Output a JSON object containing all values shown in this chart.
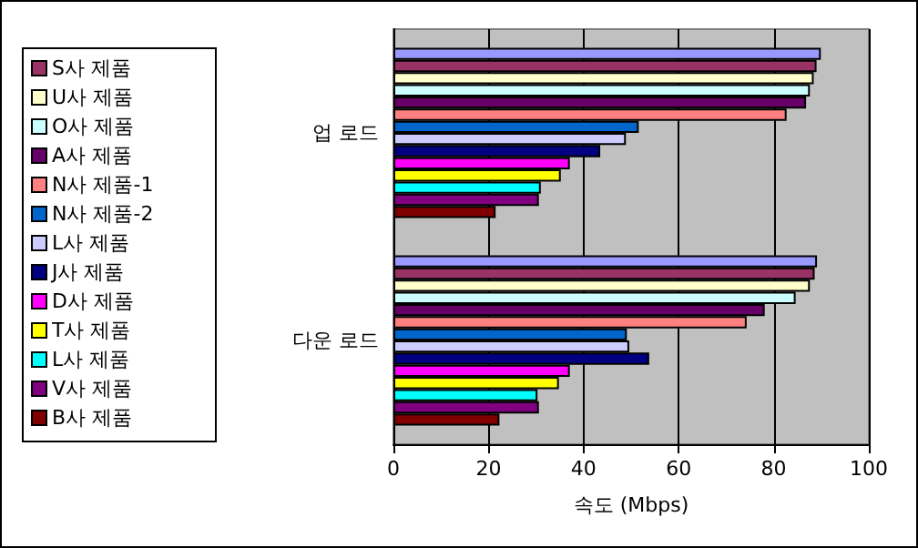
{
  "chart_data": {
    "type": "bar",
    "orientation": "horizontal",
    "categories": [
      "업 로드",
      "다운 로드"
    ],
    "xlabel": "속도 (Mbps)",
    "xlim": [
      0,
      100
    ],
    "xticks": [
      0,
      20,
      40,
      60,
      80,
      100
    ],
    "grid": "x",
    "legend": "left",
    "series": [
      {
        "color": "#9999ff",
        "values": [
          89.9,
          89.1
        ]
      },
      {
        "name": "S사 제품",
        "color": "#993366",
        "values": [
          89,
          88.6
        ]
      },
      {
        "name": "U사 제품",
        "color": "#ffffcc",
        "values": [
          88.4,
          87.6
        ]
      },
      {
        "name": "O사 제품",
        "color": "#ccffff",
        "values": [
          87.6,
          84.6
        ]
      },
      {
        "name": "A사 제품",
        "color": "#660066",
        "values": [
          86.8,
          78.1
        ]
      },
      {
        "name": "N사 제품-1",
        "color": "#ff8080",
        "values": [
          82.7,
          74.3
        ]
      },
      {
        "name": "N사 제품-2",
        "color": "#0066cc",
        "values": [
          51.6,
          49.1
        ]
      },
      {
        "name": "L사 제품",
        "color": "#ccccff",
        "values": [
          48.9,
          49.6
        ]
      },
      {
        "name": "J사 제품",
        "color": "#000080",
        "values": [
          43.5,
          53.8
        ]
      },
      {
        "name": "D사 제품",
        "color": "#ff00ff",
        "values": [
          37.1,
          37.1
        ]
      },
      {
        "name": "T사 제품",
        "color": "#ffff00",
        "values": [
          35.2,
          34.8
        ]
      },
      {
        "name": "L사 제품",
        "color": "#00ffff",
        "values": [
          31,
          30.3
        ]
      },
      {
        "name": "V사 제품",
        "color": "#800080",
        "values": [
          30.6,
          30.6
        ]
      },
      {
        "name": "B사 제품",
        "color": "#800000",
        "values": [
          21.5,
          22.3
        ]
      }
    ]
  }
}
